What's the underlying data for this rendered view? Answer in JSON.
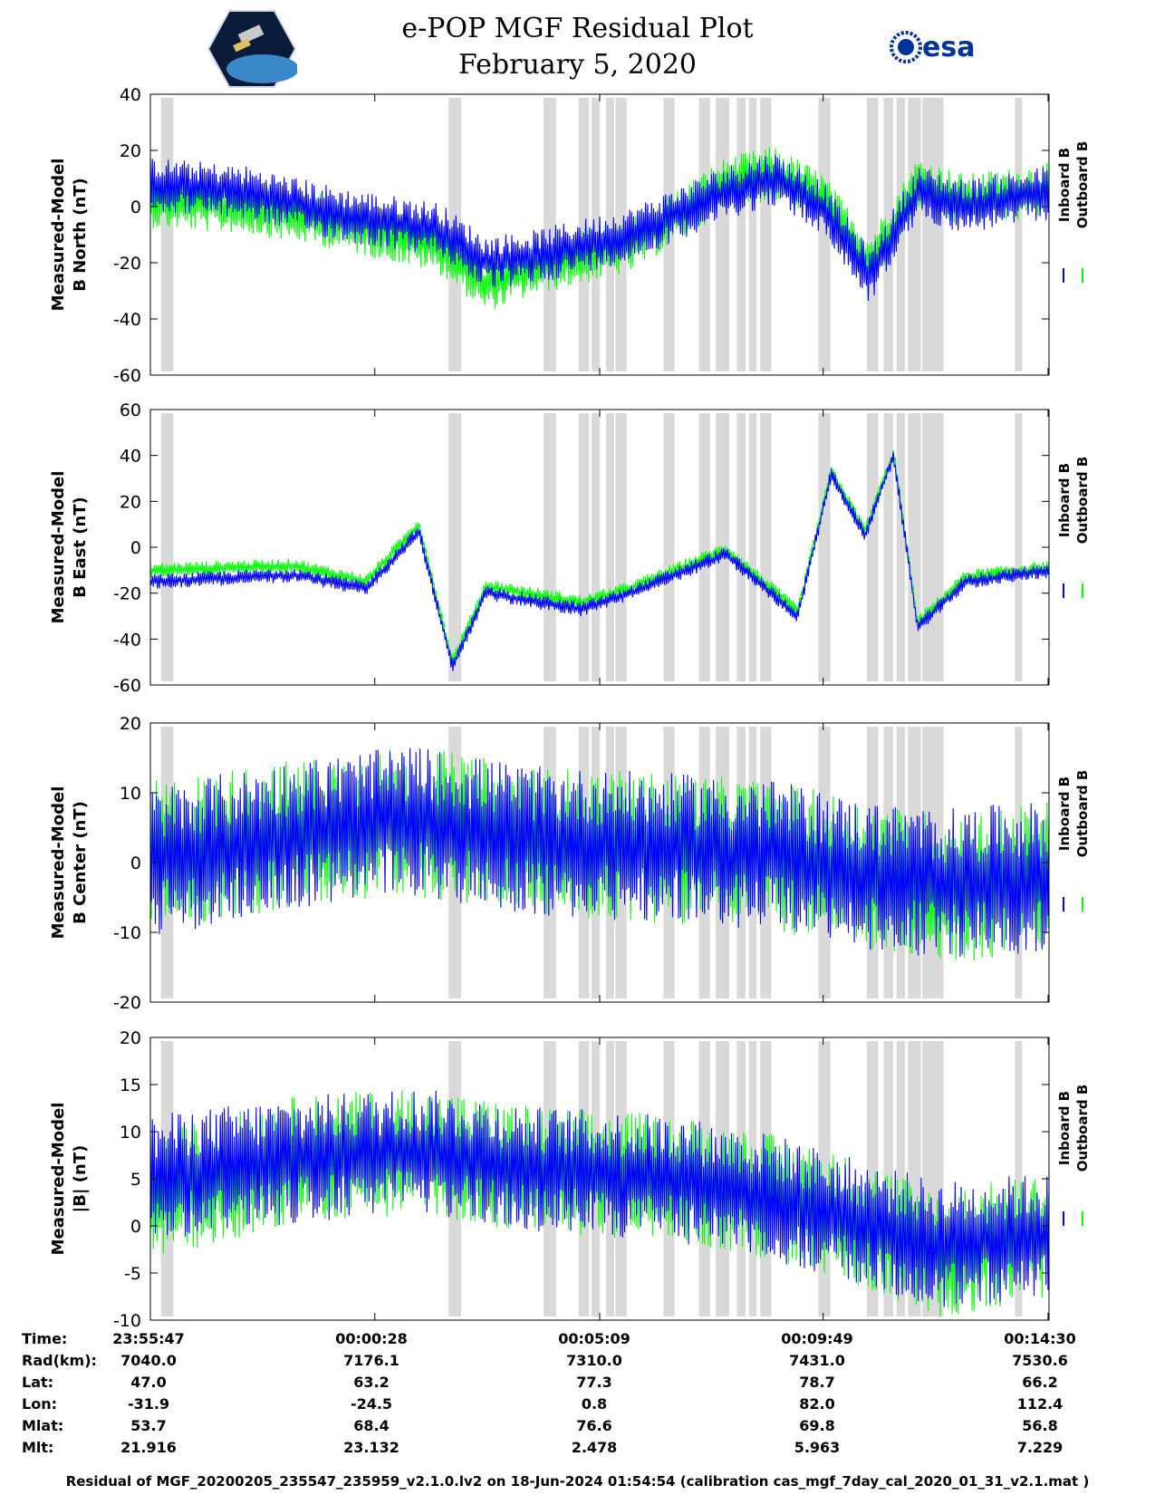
{
  "title": {
    "line1": "e-POP MGF Residual Plot",
    "line2": "February 5, 2020"
  },
  "logos": {
    "mission": "cassiope-satellite-logo",
    "agency": "esa"
  },
  "chart_data": [
    {
      "type": "line",
      "ylabel_line1": "Measured-Model",
      "ylabel_line2": "B North (nT)",
      "ylim": [
        -60,
        40
      ],
      "yticks": [
        "40",
        "20",
        "0",
        "-20",
        "-40",
        "-60"
      ],
      "series": [
        {
          "name": "Inboard B",
          "color": "#0000ff",
          "x_minutes": [
            0,
            2,
            4,
            6,
            7,
            8,
            10,
            12,
            13,
            14,
            15,
            16,
            17,
            18.74
          ],
          "y": [
            8,
            5,
            -3,
            -8,
            -20,
            -18,
            -10,
            5,
            10,
            0,
            -25,
            5,
            0,
            5
          ]
        },
        {
          "name": "Outboard B",
          "color": "#00ff00",
          "x_minutes": [
            0,
            2,
            4,
            6,
            7,
            8,
            10,
            12,
            13,
            14,
            15,
            16,
            17,
            18.74
          ],
          "y": [
            2,
            0,
            -6,
            -14,
            -28,
            -22,
            -14,
            8,
            12,
            3,
            -20,
            8,
            2,
            6
          ]
        }
      ]
    },
    {
      "type": "line",
      "ylabel_line1": "Measured-Model",
      "ylabel_line2": "B East (nT)",
      "ylim": [
        -60,
        60
      ],
      "yticks": [
        "60",
        "40",
        "20",
        "0",
        "-20",
        "-40",
        "-60"
      ],
      "series": [
        {
          "name": "Inboard B",
          "color": "#0000ff",
          "x_minutes": [
            0,
            3,
            4.5,
            5.6,
            6.3,
            7,
            9,
            10,
            12,
            13.5,
            14.2,
            14.9,
            15.5,
            16,
            17,
            18.74
          ],
          "y": [
            -15,
            -12,
            -18,
            7,
            -52,
            -20,
            -27,
            -20,
            -3,
            -30,
            32,
            5,
            40,
            -35,
            -15,
            -10
          ]
        },
        {
          "name": "Outboard B",
          "color": "#00ff00",
          "x_minutes": [
            0,
            3,
            4.5,
            5.6,
            6.3,
            7,
            9,
            10,
            12,
            13.5,
            14.2,
            14.9,
            15.5,
            16,
            17,
            18.74
          ],
          "y": [
            -10,
            -8,
            -15,
            10,
            -50,
            -17,
            -24,
            -18,
            -1,
            -28,
            33,
            7,
            41,
            -33,
            -13,
            -9
          ]
        }
      ]
    },
    {
      "type": "line",
      "ylabel_line1": "Measured-Model",
      "ylabel_line2": "B Center (nT)",
      "ylim": [
        -20,
        20
      ],
      "yticks": [
        "20",
        "10",
        "0",
        "-10",
        "-20"
      ],
      "series": [
        {
          "name": "Inboard B",
          "color": "#0000ff",
          "x_minutes": [
            0,
            3,
            5.5,
            8,
            11,
            13,
            15,
            16.5,
            18.74
          ],
          "y": [
            0,
            4,
            6,
            3,
            2,
            1,
            -2,
            -3,
            -2
          ]
        },
        {
          "name": "Outboard B",
          "color": "#00ff00",
          "x_minutes": [
            0,
            3,
            5.5,
            8,
            11,
            13,
            15,
            16.5,
            18.74
          ],
          "y": [
            1,
            4,
            6,
            3,
            2,
            1,
            -2,
            -4,
            -2
          ]
        }
      ]
    },
    {
      "type": "line",
      "ylabel_line1": "Measured-Model",
      "ylabel_line2": "|B| (nT)",
      "ylim": [
        -10,
        20
      ],
      "yticks": [
        "20",
        "15",
        "10",
        "5",
        "0",
        "-5",
        "-10"
      ],
      "series": [
        {
          "name": "Inboard B",
          "color": "#0000ff",
          "x_minutes": [
            0,
            3,
            5.5,
            8,
            11,
            13,
            15,
            16.5,
            18.74
          ],
          "y": [
            5,
            7,
            8,
            6,
            5,
            3,
            0,
            -2,
            -1
          ]
        },
        {
          "name": "Outboard B",
          "color": "#00ff00",
          "x_minutes": [
            0,
            3,
            5.5,
            8,
            11,
            13,
            15,
            16.5,
            18.74
          ],
          "y": [
            3,
            7,
            8,
            6,
            5,
            3,
            0,
            -3,
            -1
          ]
        }
      ]
    }
  ],
  "data_gaps_minutes": [
    [
      0.22,
      0.48
    ],
    [
      6.22,
      6.48
    ],
    [
      8.2,
      8.46
    ],
    [
      8.93,
      9.15
    ],
    [
      9.2,
      9.37
    ],
    [
      9.5,
      9.67
    ],
    [
      9.7,
      9.93
    ],
    [
      10.7,
      10.93
    ],
    [
      11.44,
      11.67
    ],
    [
      11.79,
      12.07
    ],
    [
      12.23,
      12.41
    ],
    [
      12.48,
      12.64
    ],
    [
      12.72,
      12.95
    ],
    [
      13.93,
      14.18
    ],
    [
      14.94,
      15.18
    ],
    [
      15.29,
      15.49
    ],
    [
      15.56,
      15.74
    ],
    [
      15.8,
      16.07
    ],
    [
      16.1,
      16.54
    ],
    [
      18.03,
      18.18
    ]
  ],
  "x_range_minutes": [
    0,
    18.74
  ],
  "legend": {
    "inboard": "Inboard B",
    "outboard": "Outboard B"
  },
  "info_table": {
    "labels": [
      "Time:",
      "Rad(km):",
      "Lat:",
      "Lon:",
      "Mlat:",
      "Mlt:"
    ],
    "columns": [
      [
        "23:55:47",
        "7040.0",
        "47.0",
        "-31.9",
        "53.7",
        "21.916"
      ],
      [
        "00:00:28",
        "7176.1",
        "63.2",
        "-24.5",
        "68.4",
        "23.132"
      ],
      [
        "00:05:09",
        "7310.0",
        "77.3",
        "0.8",
        "76.6",
        "2.478"
      ],
      [
        "00:09:49",
        "7431.0",
        "78.7",
        "82.0",
        "69.8",
        "5.963"
      ],
      [
        "00:14:30",
        "7530.6",
        "66.2",
        "112.4",
        "56.8",
        "7.229"
      ]
    ]
  },
  "footer": "Residual of MGF_20200205_235547_235959_v2.1.0.lv2 on 18-Jun-2024 01:54:54 (calibration cas_mgf_7day_cal_2020_01_31_v2.1.mat )"
}
